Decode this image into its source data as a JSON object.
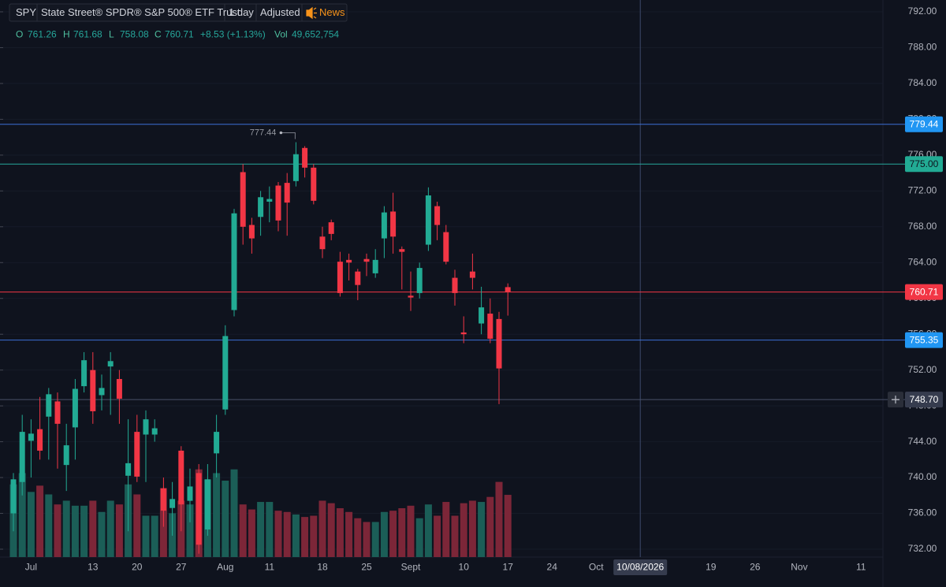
{
  "chart_data": {
    "type": "candlestick",
    "header": {
      "symbol": "SPY",
      "name": "State Street® SPDR® S&P 500® ETF Trust",
      "interval": "1 day",
      "adjustment": "Adjusted",
      "news": "News"
    },
    "legend": [
      {
        "label": "O",
        "value": 761.26
      },
      {
        "label": "H",
        "value": 761.68
      },
      {
        "label": "L",
        "value": 758.08
      },
      {
        "label": "C",
        "value": 760.71
      }
    ],
    "change": "+8.53 (+1.13%)",
    "volume_legend": {
      "label": "Vol",
      "value": "49,652,754"
    },
    "categories": [
      null,
      null,
      "Jul",
      null,
      null,
      null,
      null,
      null,
      null,
      "13",
      null,
      null,
      null,
      null,
      "20",
      null,
      null,
      null,
      null,
      "27",
      null,
      null,
      null,
      null,
      "Aug",
      null,
      null,
      null,
      null,
      "11",
      null,
      null,
      null,
      null,
      null,
      "18",
      null,
      null,
      null,
      null,
      "25",
      null,
      null,
      null,
      null,
      "Sept",
      null,
      null,
      null,
      null,
      null,
      "10",
      null,
      null,
      null,
      null,
      "17",
      null,
      null,
      null,
      null,
      "24",
      null,
      null,
      null,
      null,
      "Oct",
      null,
      null,
      null,
      null,
      "10/08/2026",
      null,
      null,
      null,
      null,
      null,
      null,
      null,
      "19",
      null,
      null,
      null,
      null,
      "26",
      null,
      null,
      null,
      null,
      "Nov",
      null,
      null,
      null,
      null,
      null,
      null,
      "11"
    ],
    "open": [
      736,
      739.5,
      744.1,
      745.4,
      746.8,
      748.5,
      741.4,
      745.6,
      750.2,
      752,
      749.2,
      752.4,
      751,
      740.2,
      745.1,
      744.8,
      744.8,
      738.8,
      736.6,
      743,
      737.4,
      740.5,
      734.2,
      742.7,
      747.6,
      758.7,
      774.1,
      768.2,
      769.1,
      770.8,
      772.6,
      772.9,
      773.1,
      776.8,
      774.6,
      766.9,
      768.5,
      764.1,
      764.3,
      763,
      764.4,
      762.8,
      766.7,
      769.7,
      765.5,
      760.3,
      760.6,
      766,
      770.3,
      767.4,
      762.3,
      756.2,
      763,
      757.2,
      758.3,
      757.7,
      761.26,
      null,
      null,
      null,
      null,
      null,
      null,
      null,
      null,
      null,
      null,
      null,
      null,
      null,
      null,
      null,
      null,
      null,
      null,
      null,
      null,
      null,
      null,
      null,
      null,
      null,
      null,
      null,
      null,
      null,
      null,
      null,
      null,
      null,
      null,
      null,
      null,
      null,
      null,
      null,
      null
    ],
    "high": [
      740.5,
      747,
      746.5,
      749,
      750,
      749.5,
      746,
      751,
      754,
      754,
      751.5,
      754,
      752,
      746.5,
      747,
      747.5,
      746.5,
      740,
      739.5,
      743.5,
      741,
      741.5,
      741.5,
      747,
      757,
      770,
      775,
      769,
      772,
      772.5,
      773,
      774,
      777.44,
      777,
      775,
      768,
      768.8,
      765.2,
      765,
      763.3,
      765,
      765.5,
      770.3,
      771.8,
      765.8,
      763,
      764,
      772.4,
      770.8,
      768.2,
      763.2,
      758,
      765,
      761.3,
      760,
      758.5,
      761.68,
      null,
      null,
      null,
      null,
      null,
      null,
      null,
      null,
      null,
      null,
      null,
      null,
      null,
      null,
      null,
      null,
      null,
      null,
      null,
      null,
      null,
      null,
      null,
      null,
      null,
      null,
      null,
      null,
      null,
      null,
      null,
      null,
      null,
      null,
      null,
      null,
      null,
      null,
      null,
      null
    ],
    "low": [
      734,
      738,
      740,
      742,
      742,
      741,
      738.5,
      742,
      749.5,
      746,
      747.5,
      747,
      746,
      734,
      739.5,
      739.5,
      744,
      734.5,
      733.5,
      734,
      735,
      731.5,
      733.5,
      740,
      747,
      758,
      766,
      765,
      767,
      768.5,
      767.5,
      767,
      772.5,
      773.5,
      770.5,
      764.5,
      766.5,
      760.2,
      762,
      759.8,
      762.5,
      762.3,
      764.5,
      765,
      761,
      758.6,
      760,
      765.3,
      766.5,
      763.8,
      759.2,
      755,
      761,
      756,
      755,
      748.2,
      758.08,
      null,
      null,
      null,
      null,
      null,
      null,
      null,
      null,
      null,
      null,
      null,
      null,
      null,
      null,
      null,
      null,
      null,
      null,
      null,
      null,
      null,
      null,
      null,
      null,
      null,
      null,
      null,
      null,
      null,
      null,
      null,
      null,
      null,
      null,
      null,
      null,
      null,
      null,
      null,
      null
    ],
    "close": [
      739.8,
      745.1,
      744.9,
      743,
      749.3,
      746,
      743.6,
      749.9,
      753.1,
      747.4,
      750,
      753,
      748.8,
      741.6,
      740.1,
      746.5,
      745.5,
      736.3,
      737.6,
      737,
      739,
      732.5,
      739.8,
      745.1,
      755.8,
      769.5,
      768,
      766.7,
      771.3,
      771.1,
      768.7,
      770.7,
      776.1,
      774.6,
      770.9,
      765.5,
      767.2,
      760.6,
      764,
      761.5,
      764.1,
      764.3,
      769.6,
      766.9,
      765.2,
      760.1,
      763.4,
      771.5,
      768.2,
      764.1,
      760.6,
      756,
      762.3,
      759,
      755.5,
      752.18,
      760.71,
      null,
      null,
      null,
      null,
      null,
      null,
      null,
      null,
      null,
      null,
      null,
      null,
      null,
      null,
      null,
      null,
      null,
      null,
      null,
      null,
      null,
      null,
      null,
      null,
      null,
      null,
      null,
      null,
      null,
      null,
      null,
      null,
      null,
      null,
      null,
      null,
      null,
      null,
      null,
      null
    ],
    "volume": [
      58000000,
      67000000,
      52000000,
      57000000,
      50000000,
      42000000,
      45000000,
      41000000,
      41000000,
      45000000,
      36000000,
      45000000,
      42000000,
      58000000,
      50000000,
      33000000,
      33000000,
      55000000,
      35000000,
      45000000,
      42000000,
      70000000,
      62000000,
      67000000,
      61000000,
      70000000,
      42000000,
      38000000,
      44000000,
      44000000,
      37000000,
      36000000,
      34000000,
      32000000,
      33000000,
      45000000,
      43000000,
      39000000,
      36000000,
      31000000,
      28000000,
      28000000,
      36000000,
      37000000,
      39000000,
      41000000,
      31000000,
      42000000,
      33000000,
      44000000,
      33000000,
      43000000,
      45000000,
      44000000,
      48000000,
      60000000,
      49652754,
      null,
      null,
      null,
      null,
      null,
      null,
      null,
      null,
      null,
      null,
      null,
      null,
      null,
      null,
      null,
      null,
      null,
      null,
      null,
      null,
      null,
      null,
      null,
      null,
      null,
      null,
      null,
      null,
      null,
      null,
      null,
      null,
      null,
      null,
      null,
      null,
      null,
      null,
      null,
      null
    ],
    "up_color": "#22ab94",
    "down_color": "#f23645",
    "volume_up_color": "#1b5e57",
    "volume_down_color": "#7c2638",
    "ylim": [
      732,
      792
    ],
    "volume_ylim": [
      0,
      100000000
    ],
    "yticks": [
      {
        "value": 732,
        "label": "732.00"
      },
      {
        "value": 736,
        "label": "736.00"
      },
      {
        "value": 740,
        "label": "740.00"
      },
      {
        "value": 744,
        "label": "744.00"
      },
      {
        "value": 748,
        "label": "748.00"
      },
      {
        "value": 752,
        "label": "752.00"
      },
      {
        "value": 756,
        "label": "756.00"
      },
      {
        "value": 760,
        "label": "760.00"
      },
      {
        "value": 764,
        "label": "764.00"
      },
      {
        "value": 768,
        "label": "768.00"
      },
      {
        "value": 772,
        "label": "772.00"
      },
      {
        "value": 776,
        "label": "776.00"
      },
      {
        "value": 780,
        "label": "780.00"
      },
      {
        "value": 784,
        "label": "784.00"
      },
      {
        "value": 788,
        "label": "788.00"
      },
      {
        "value": 792,
        "label": "792.00"
      }
    ],
    "grid": true,
    "price_lines": [
      {
        "value": 779.44,
        "label": "779.44",
        "color": "#3b6fd6",
        "label_color": "#2196f3"
      },
      {
        "value": 775,
        "label": "775.00",
        "color": "#26a69a",
        "label_color": "#22ab94"
      },
      {
        "value": 760.71,
        "label": "760.71",
        "color": "#f23645",
        "label_color": "#f23645"
      },
      {
        "value": 755.35,
        "label": "755.35",
        "color": "#3b6fd6",
        "label_color": "#2196f3"
      }
    ],
    "high_annotation": {
      "value": 777.44,
      "label": "777.44"
    },
    "crosshair": {
      "x": 71,
      "y": {
        "value": 748.7,
        "label": "748.70"
      }
    }
  }
}
